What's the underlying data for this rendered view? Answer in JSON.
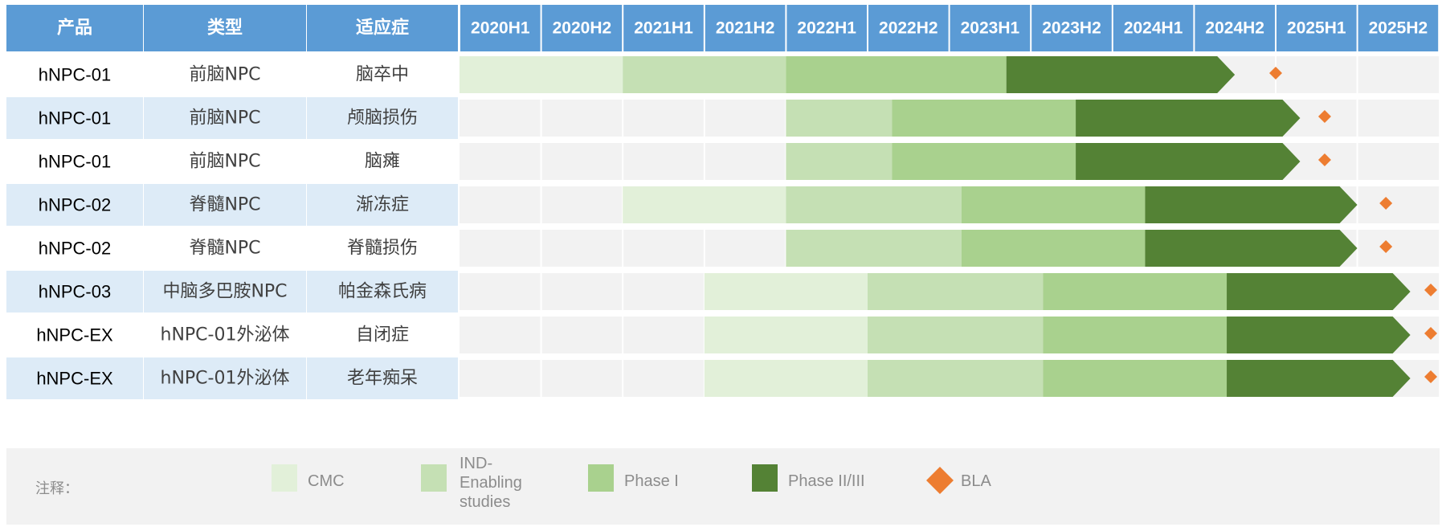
{
  "chart_data": {
    "type": "gantt",
    "columns": [
      "产品",
      "类型",
      "适应症"
    ],
    "periods": [
      "2020H1",
      "2020H2",
      "2021H1",
      "2021H2",
      "2022H1",
      "2022H2",
      "2023H1",
      "2023H2",
      "2024H1",
      "2024H2",
      "2025H1",
      "2025H2"
    ],
    "phases": [
      "CMC",
      "IND-Enabling studies",
      "Phase I",
      "Phase II/III"
    ],
    "colors": {
      "header": "#5b9bd5",
      "CMC": "#e2f0d9",
      "IND-Enabling studies": "#c5e0b4",
      "Phase I": "#a9d18e",
      "Phase II/III": "#548235",
      "BLA": "#ed7d31",
      "row_alt": "#ddebf7",
      "track": "#f2f2f2"
    },
    "rows": [
      {
        "product": "hNPC-01",
        "type": "前脑NPC",
        "indication": "脑卒中",
        "segments": [
          [
            0,
            2
          ],
          [
            2,
            4
          ],
          [
            4,
            6.7
          ],
          [
            6.7,
            9.5
          ]
        ],
        "bla": 10.0
      },
      {
        "product": "hNPC-01",
        "type": "前脑NPC",
        "indication": "颅脑损伤",
        "segments": [
          null,
          [
            4,
            5.3
          ],
          [
            5.3,
            7.55
          ],
          [
            7.55,
            10.3
          ]
        ],
        "bla": 10.6
      },
      {
        "product": "hNPC-01",
        "type": "前脑NPC",
        "indication": "脑瘫",
        "segments": [
          null,
          [
            4,
            5.3
          ],
          [
            5.3,
            7.55
          ],
          [
            7.55,
            10.3
          ]
        ],
        "bla": 10.6
      },
      {
        "product": "hNPC-02",
        "type": "脊髓NPC",
        "indication": "渐冻症",
        "segments": [
          [
            2,
            4
          ],
          [
            4,
            6.15
          ],
          [
            6.15,
            8.4
          ],
          [
            8.4,
            11.0
          ]
        ],
        "bla": 11.35
      },
      {
        "product": "hNPC-02",
        "type": "脊髓NPC",
        "indication": "脊髓损伤",
        "segments": [
          null,
          [
            4,
            6.15
          ],
          [
            6.15,
            8.4
          ],
          [
            8.4,
            11.0
          ]
        ],
        "bla": 11.35
      },
      {
        "product": "hNPC-03",
        "type": "中脑多巴胺NPC",
        "indication": "帕金森氏病",
        "segments": [
          [
            3,
            5
          ],
          [
            5,
            7.15
          ],
          [
            7.15,
            9.4
          ],
          [
            9.4,
            11.65
          ]
        ],
        "bla": 11.9
      },
      {
        "product": "hNPC-EX",
        "type": "hNPC-01外泌体",
        "indication": "自闭症",
        "segments": [
          [
            3,
            5
          ],
          [
            5,
            7.15
          ],
          [
            7.15,
            9.4
          ],
          [
            9.4,
            11.65
          ]
        ],
        "bla": 11.9
      },
      {
        "product": "hNPC-EX",
        "type": "hNPC-01外泌体",
        "indication": "老年痴呆",
        "segments": [
          [
            3,
            5
          ],
          [
            5,
            7.15
          ],
          [
            7.15,
            9.4
          ],
          [
            9.4,
            11.65
          ]
        ],
        "bla": 11.9
      }
    ]
  },
  "legend": {
    "label": "注释：",
    "items": [
      {
        "name": "CMC",
        "lines": [
          "CMC"
        ]
      },
      {
        "name": "IND-Enabling studies",
        "lines": [
          "IND-",
          "Enabling",
          "studies"
        ]
      },
      {
        "name": "Phase I",
        "lines": [
          "Phase I"
        ]
      },
      {
        "name": "Phase II/III",
        "lines": [
          "Phase II/III"
        ]
      },
      {
        "name": "BLA",
        "lines": [
          "BLA"
        ]
      }
    ]
  }
}
